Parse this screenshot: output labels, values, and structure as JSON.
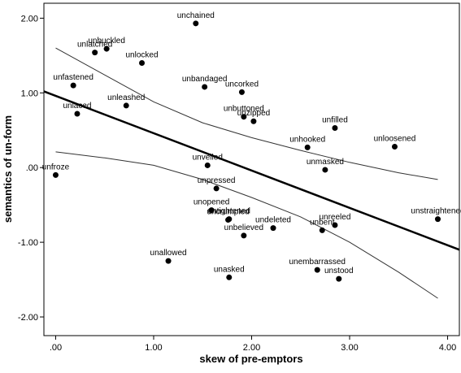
{
  "chart_data": {
    "type": "scatter",
    "xlabel": "skew of pre-emptors",
    "ylabel": "semantics of un-form",
    "xlim": [
      -0.12,
      4.12
    ],
    "ylim": [
      -2.25,
      2.2
    ],
    "x_ticks": [
      {
        "value": 0,
        "label": ".00"
      },
      {
        "value": 1,
        "label": "1.00"
      },
      {
        "value": 2,
        "label": "2.00"
      },
      {
        "value": 3,
        "label": "3.00"
      },
      {
        "value": 4,
        "label": "4.00"
      }
    ],
    "y_ticks": [
      {
        "value": 2,
        "label": "2.00"
      },
      {
        "value": 1,
        "label": "1.00"
      },
      {
        "value": 0,
        "label": ".00"
      },
      {
        "value": -1,
        "label": "-1.00"
      },
      {
        "value": -2,
        "label": "-2.00"
      }
    ],
    "points": [
      {
        "label": "unchained",
        "x": 1.43,
        "y": 1.93
      },
      {
        "label": "unbuckled",
        "x": 0.52,
        "y": 1.59
      },
      {
        "label": "unlatched",
        "x": 0.4,
        "y": 1.54
      },
      {
        "label": "unlocked",
        "x": 0.88,
        "y": 1.4
      },
      {
        "label": "unfastened",
        "x": 0.18,
        "y": 1.1
      },
      {
        "label": "unbandaged",
        "x": 1.52,
        "y": 1.08
      },
      {
        "label": "uncorked",
        "x": 1.9,
        "y": 1.01
      },
      {
        "label": "unleashed",
        "x": 0.72,
        "y": 0.83
      },
      {
        "label": "unlaced",
        "x": 0.22,
        "y": 0.72
      },
      {
        "label": "unbuttoned",
        "x": 1.92,
        "y": 0.68
      },
      {
        "label": "unzipped",
        "x": 2.02,
        "y": 0.62
      },
      {
        "label": "unfilled",
        "x": 2.85,
        "y": 0.53
      },
      {
        "label": "unhooked",
        "x": 2.57,
        "y": 0.27
      },
      {
        "label": "unloosened",
        "x": 3.46,
        "y": 0.28
      },
      {
        "label": "unveiled",
        "x": 1.55,
        "y": 0.03
      },
      {
        "label": "unmasked",
        "x": 2.75,
        "y": -0.03
      },
      {
        "label": "unfroze",
        "x": 0.0,
        "y": -0.1
      },
      {
        "label": "unpressed",
        "x": 1.64,
        "y": -0.28
      },
      {
        "label": "unopened",
        "x": 1.59,
        "y": -0.57
      },
      {
        "label": "untightened",
        "x": 1.77,
        "y": -0.69
      },
      {
        "label": "uncrumpled",
        "x": 1.76,
        "y": -0.7
      },
      {
        "label": "unstraightened",
        "x": 3.9,
        "y": -0.69
      },
      {
        "label": "undeleted",
        "x": 2.22,
        "y": -0.81
      },
      {
        "label": "unreeled",
        "x": 2.85,
        "y": -0.77
      },
      {
        "label": "unbent",
        "x": 2.72,
        "y": -0.84
      },
      {
        "label": "unbelieved",
        "x": 1.92,
        "y": -0.91
      },
      {
        "label": "unallowed",
        "x": 1.15,
        "y": -1.25
      },
      {
        "label": "unembarrassed",
        "x": 2.67,
        "y": -1.37
      },
      {
        "label": "unasked",
        "x": 1.77,
        "y": -1.47
      },
      {
        "label": "unstood",
        "x": 2.89,
        "y": -1.49
      }
    ],
    "regression_line": {
      "x": [
        -0.12,
        4.12
      ],
      "y": [
        1.02,
        -1.1
      ]
    },
    "confidence_upper": {
      "x": [
        0,
        0.5,
        1.0,
        1.5,
        2.0,
        2.5,
        3.0,
        3.5,
        3.9
      ],
      "y": [
        1.6,
        1.24,
        0.88,
        0.6,
        0.4,
        0.23,
        0.07,
        -0.07,
        -0.16
      ]
    },
    "confidence_lower": {
      "x": [
        0,
        0.5,
        1.0,
        1.5,
        2.0,
        2.5,
        3.0,
        3.5,
        3.9
      ],
      "y": [
        0.21,
        0.13,
        0.03,
        -0.16,
        -0.4,
        -0.66,
        -1.0,
        -1.4,
        -1.75
      ]
    },
    "grid": false,
    "legend": "none"
  }
}
